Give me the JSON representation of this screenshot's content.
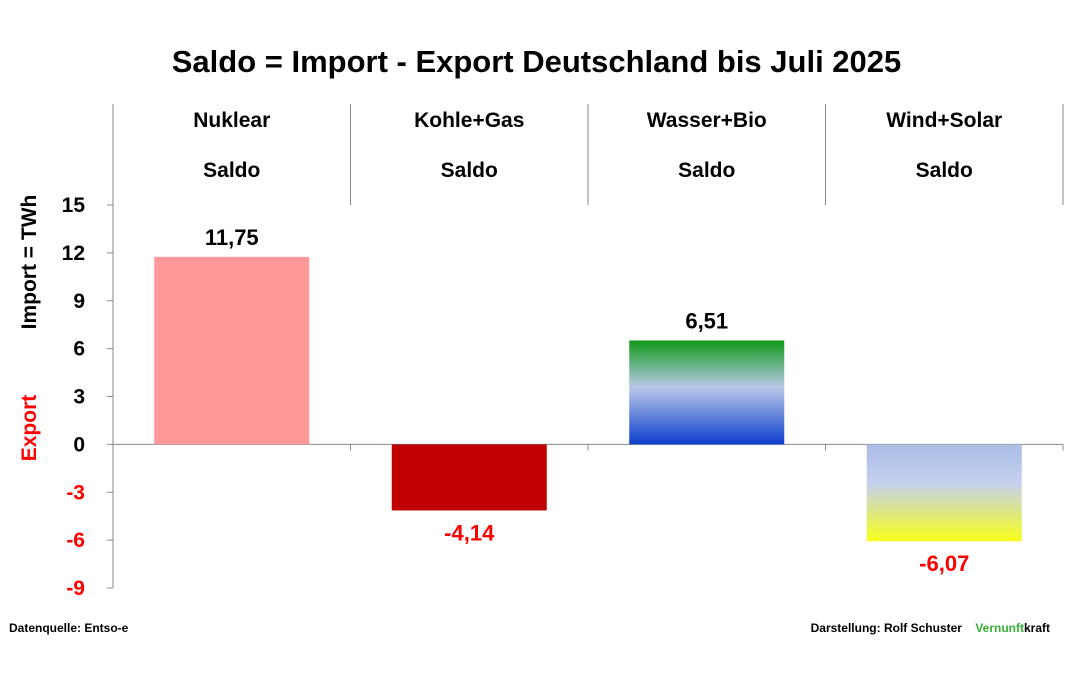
{
  "chart_data": {
    "type": "bar",
    "title": "Saldo = Import - Export Deutschland bis Juli 2025",
    "ylabel_import": "Import =  TWh",
    "ylabel_export": "Export",
    "ylim": [
      -9,
      15
    ],
    "yticks": [
      15,
      12,
      9,
      6,
      3,
      0,
      -3,
      -6,
      -9
    ],
    "categories": [
      "Nuklear",
      "Kohle+Gas",
      "Wasser+Bio",
      "Wind+Solar"
    ],
    "category_sublabel": "Saldo",
    "values": [
      11.75,
      -4.14,
      6.51,
      -6.07
    ],
    "value_labels": [
      "11,75",
      "-4,14",
      "6,51",
      "-6,07"
    ],
    "colors": {
      "positive_label": "#000000",
      "negative_label": "#ff0000",
      "nuklear": "#ff9999",
      "kohle_gas": "#c00000",
      "wasser_bio_top": "#109a1a",
      "wasser_bio_mid": "#b9c8e8",
      "wasser_bio_bottom": "#0b3dcc",
      "wind_solar_top": "#a9bde6",
      "wind_solar_bottom": "#f7ff1a"
    },
    "grid": false
  },
  "footer": {
    "source": "Datenquelle: Entso-e",
    "author": "Darstellung:  Rolf Schuster",
    "brand_green": "Vernunft",
    "brand_black": "kraft"
  }
}
